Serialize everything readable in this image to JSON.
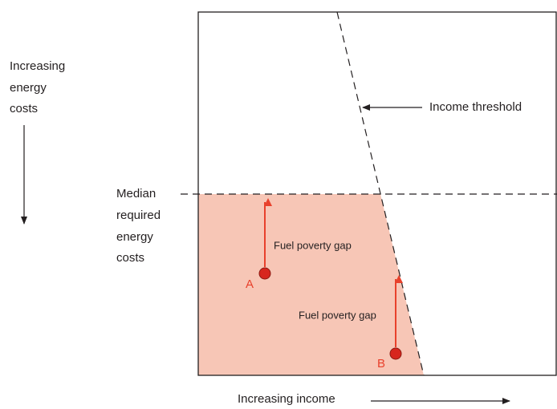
{
  "y_axis_label": [
    "Increasing",
    "energy",
    "costs"
  ],
  "median_label": [
    "Median",
    "required",
    "energy",
    "costs"
  ],
  "threshold_label": "Income threshold",
  "gap_labels": [
    "Fuel poverty gap",
    "Fuel poverty gap"
  ],
  "points": [
    "A",
    "B"
  ],
  "x_axis_label": "Increasing income"
}
